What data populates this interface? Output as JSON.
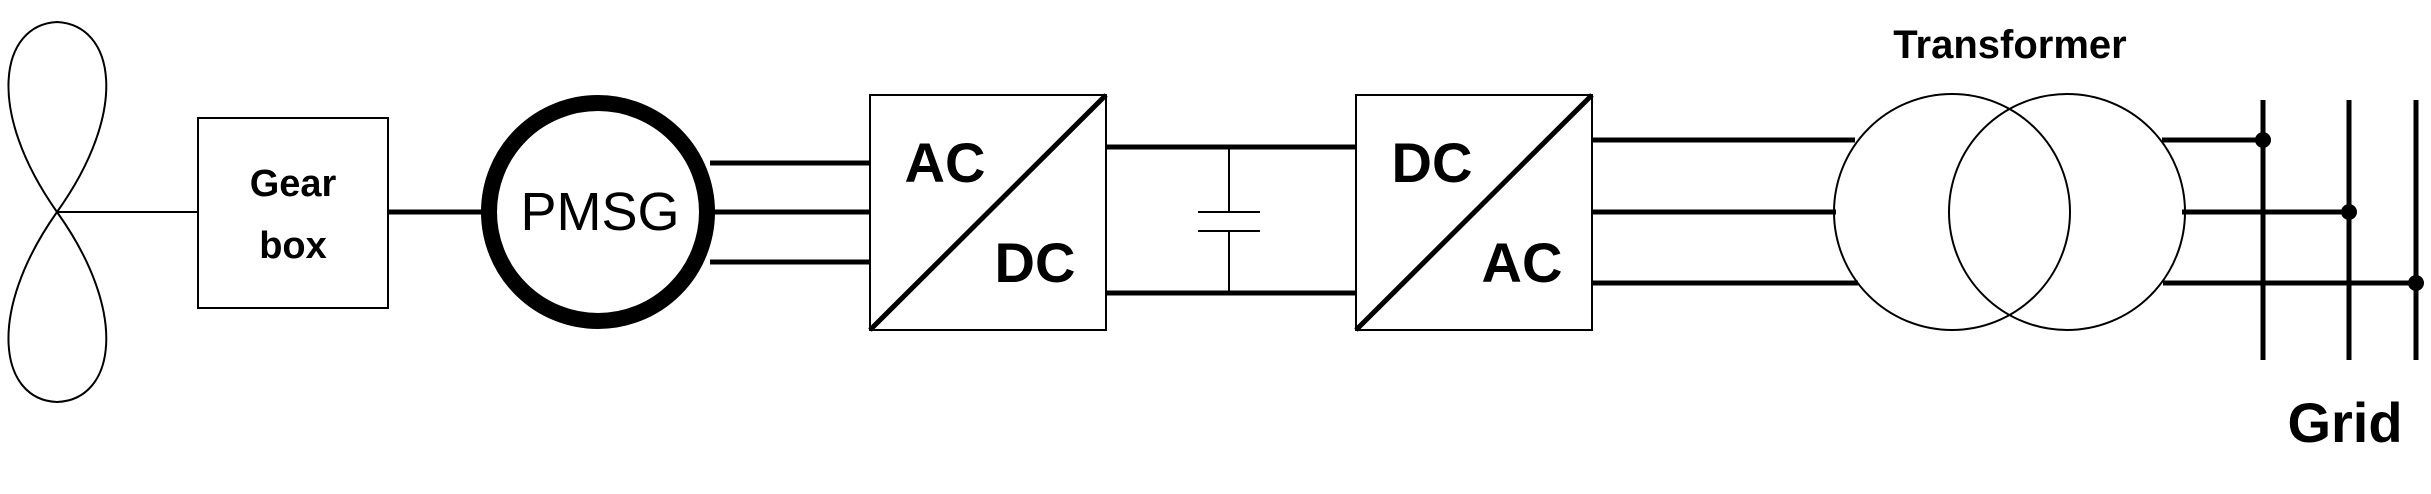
{
  "gearbox": {
    "line1": "Gear",
    "line2": "box"
  },
  "generator": {
    "label": "PMSG"
  },
  "rectifier": {
    "top": "AC",
    "bottom": "DC"
  },
  "inverter": {
    "top": "DC",
    "bottom": "AC"
  },
  "transformer": {
    "label": "Transformer"
  },
  "grid": {
    "label": "Grid"
  },
  "colors": {
    "stroke": "#000000",
    "background": "#ffffff"
  }
}
